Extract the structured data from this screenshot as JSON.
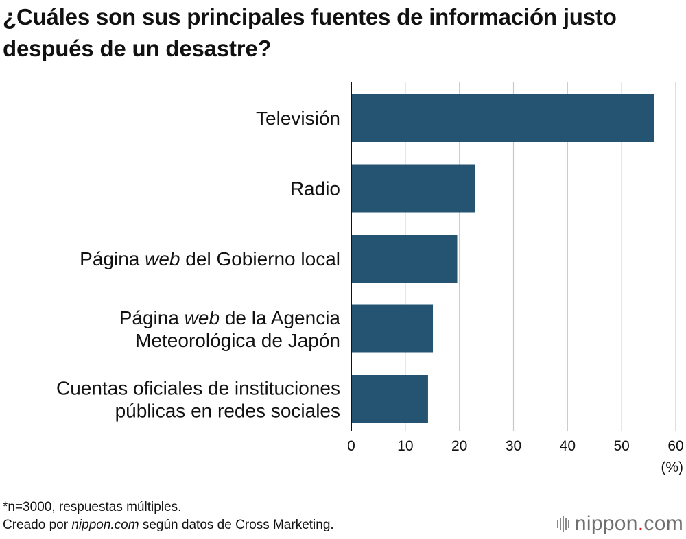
{
  "title": "¿Cuáles son sus principales fuentes de información justo después de un desastre?",
  "chart_data": {
    "type": "bar",
    "orientation": "horizontal",
    "categories": [
      "Televisión",
      "Radio",
      "Página web del Gobierno local",
      "Página web de la Agencia Meteorológica de Japón",
      "Cuentas oficiales de instituciones públicas en redes sociales"
    ],
    "category_lines": [
      [
        [
          {
            "t": "Televisión"
          }
        ]
      ],
      [
        [
          {
            "t": "Radio"
          }
        ]
      ],
      [
        [
          {
            "t": "Página "
          },
          {
            "t": "web",
            "i": true
          },
          {
            "t": " del Gobierno local"
          }
        ]
      ],
      [
        [
          {
            "t": "Página "
          },
          {
            "t": "web",
            "i": true
          },
          {
            "t": " de la Agencia"
          }
        ],
        [
          {
            "t": "Meteorológica de Japón"
          }
        ]
      ],
      [
        [
          {
            "t": "Cuentas oficiales de instituciones"
          }
        ],
        [
          {
            "t": "públicas en redes sociales"
          }
        ]
      ]
    ],
    "values": [
      56.0,
      22.9,
      19.6,
      15.1,
      14.2
    ],
    "xlim": [
      0,
      60
    ],
    "xticks": [
      0,
      10,
      20,
      30,
      40,
      50,
      60
    ],
    "xunit": "(%)",
    "grid": true,
    "bar_color": "#255473"
  },
  "notes": {
    "line1": "*n=3000, respuestas múltiples.",
    "line2_pre": "Creado por ",
    "line2_italic": "nippon.com",
    "line2_post": " según datos de Cross Marketing."
  },
  "logo": {
    "name": "nippon",
    "dot": ".",
    "tld": "com"
  }
}
